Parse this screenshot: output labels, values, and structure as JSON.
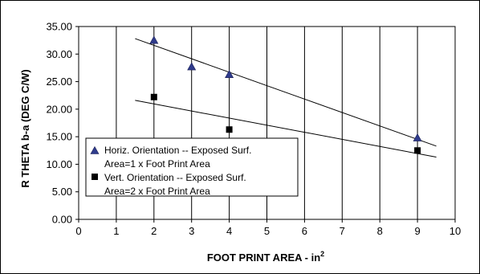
{
  "chart_data": {
    "type": "scatter",
    "xlabel": "FOOT PRINT AREA - in",
    "xlabel_superscript": "2",
    "ylabel": "R THETA b-a (DEG C/W)",
    "xlim": [
      0,
      10
    ],
    "ylim": [
      0,
      35
    ],
    "x_ticks": [
      "0",
      "1",
      "2",
      "3",
      "4",
      "5",
      "6",
      "7",
      "8",
      "9",
      "10"
    ],
    "y_ticks": [
      "0.00",
      "5.00",
      "10.00",
      "15.00",
      "20.00",
      "25.00",
      "30.00",
      "35.00"
    ],
    "grid": "vertical-only",
    "legend_position": "lower-left",
    "series": [
      {
        "name_line1": "Horiz. Orientation -- Exposed Surf.",
        "name_line2": "Area=1 x Foot Print Area",
        "marker": "triangle",
        "color": "#2f3b8c",
        "x": [
          2,
          3,
          4,
          9
        ],
        "y": [
          32.5,
          27.7,
          26.3,
          14.8
        ],
        "trendline": {
          "x": [
            1.5,
            9.5
          ],
          "y": [
            32.8,
            13.3
          ]
        }
      },
      {
        "name_line1": "Vert. Orientation -- Exposed Surf.",
        "name_line2": "Area=2 x Foot Print Area",
        "marker": "square",
        "color": "#000000",
        "x": [
          2,
          4,
          9
        ],
        "y": [
          22.2,
          16.3,
          12.5
        ],
        "trendline": {
          "x": [
            1.5,
            9.5
          ],
          "y": [
            21.6,
            11.3
          ]
        }
      }
    ]
  }
}
